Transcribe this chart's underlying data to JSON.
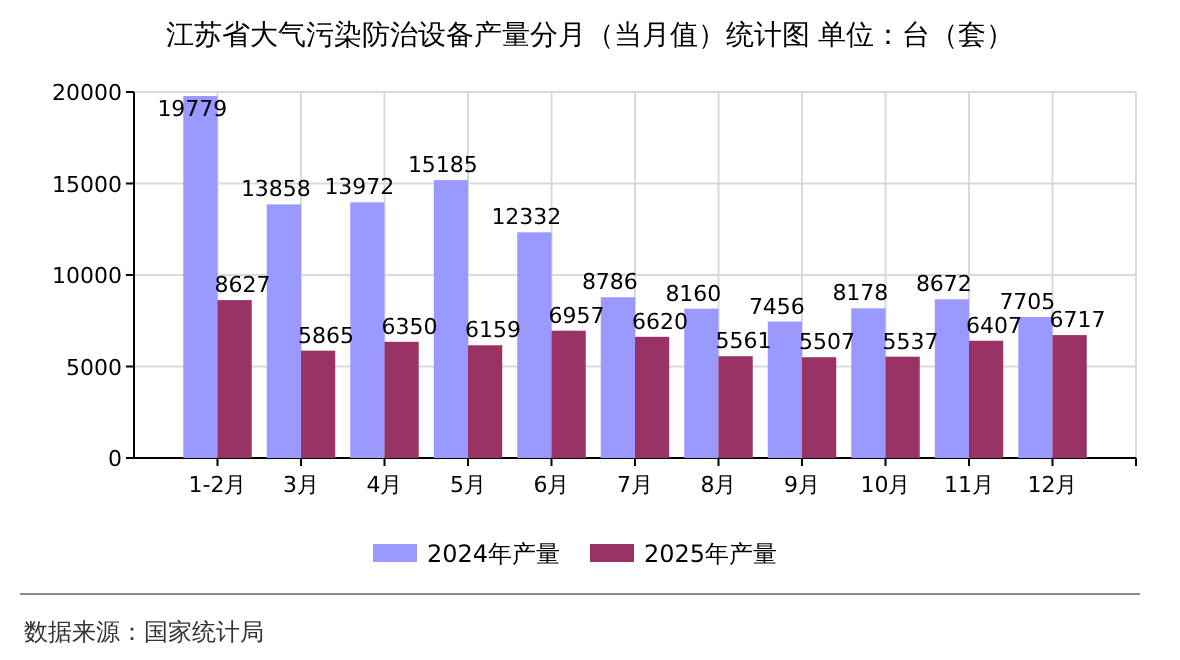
{
  "chart_data": {
    "type": "bar",
    "title": "江苏省大气污染防治设备产量分月（当月值）统计图 单位：台（套）",
    "categories": [
      "1-2月",
      "3月",
      "4月",
      "5月",
      "6月",
      "7月",
      "8月",
      "9月",
      "10月",
      "11月",
      "12月"
    ],
    "series": [
      {
        "name": "2024年产量",
        "color": "#9999ff",
        "values": [
          19779,
          13858,
          13972,
          15185,
          12332,
          8786,
          8160,
          7456,
          8178,
          8672,
          7705
        ]
      },
      {
        "name": "2025年产量",
        "color": "#993366",
        "values": [
          8627,
          5865,
          6350,
          6159,
          6957,
          6620,
          5561,
          5507,
          5537,
          6407,
          6717
        ]
      }
    ],
    "ylim": [
      0,
      20000
    ],
    "yticks": [
      0,
      5000,
      10000,
      15000,
      20000
    ],
    "grid": true,
    "legend": "bottom",
    "data_labels": true,
    "annotations": [
      "数据来源：国家统计局"
    ]
  }
}
